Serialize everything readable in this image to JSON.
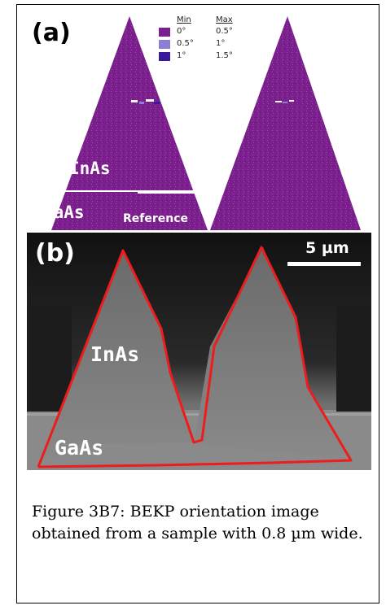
{
  "panel_a": {
    "label": "(a)",
    "material_top": "InAs",
    "material_bottom": "GaAs",
    "reference_label": "Reference",
    "legend": {
      "min_header": "Min",
      "max_header": "Max",
      "rows": [
        {
          "min": "0°",
          "max": "0.5°",
          "color": "#7a1f8c"
        },
        {
          "min": "0.5°",
          "max": "1°",
          "color": "#8a7fd4"
        },
        {
          "min": "1°",
          "max": "1.5°",
          "color": "#3a1a9a"
        }
      ]
    },
    "colors": {
      "grain": "#7a1f8c",
      "grain_noise": "#8f3aa0"
    }
  },
  "panel_b": {
    "label": "(b)",
    "scale_bar_text": "5 µm",
    "material_top": "InAs",
    "material_bottom": "GaAs",
    "colors": {
      "outline": "#ee1c1c"
    }
  },
  "caption": {
    "text": "Figure 3B7: BEKP orientation image obtained from a sample with 0.8 µm wide."
  }
}
